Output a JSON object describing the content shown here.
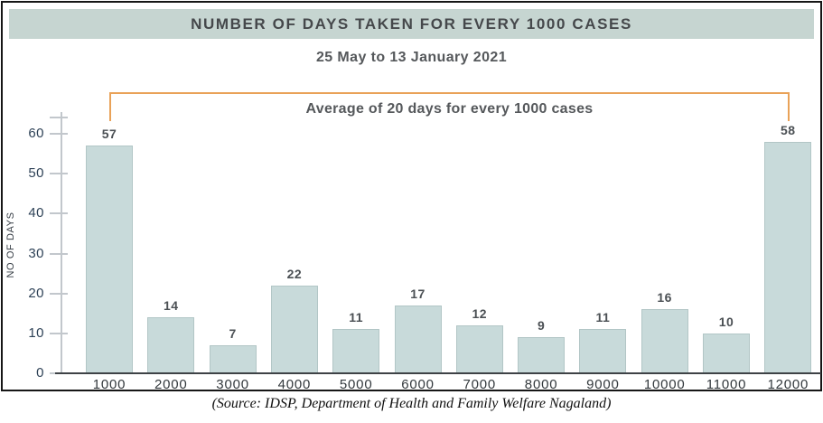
{
  "header": {
    "title": "NUMBER OF DAYS TAKEN FOR EVERY 1000 CASES"
  },
  "subtitle": "25 May to 13 January 2021",
  "annotation": {
    "label": "Average of 20 days for every 1000 cases"
  },
  "source": "(Source: IDSP, Department of Health and Family Welfare Nagaland)",
  "chart_data": {
    "type": "bar",
    "title": "NUMBER OF DAYS TAKEN FOR EVERY 1000 CASES",
    "subtitle": "25 May to 13 January 2021",
    "categories": [
      "1000",
      "2000",
      "3000",
      "4000",
      "5000",
      "6000",
      "7000",
      "8000",
      "9000",
      "10000",
      "11000",
      "12000"
    ],
    "values": [
      57,
      14,
      7,
      22,
      11,
      17,
      12,
      9,
      11,
      16,
      10,
      58
    ],
    "xlabel": "",
    "ylabel": "NO OF DAYS",
    "ylim": [
      0,
      65
    ],
    "yticks": [
      0,
      10,
      20,
      30,
      40,
      50,
      60
    ],
    "grid": false,
    "legend": "none",
    "annotation": "Average of 20 days for every 1000 cases",
    "annotation_span": [
      "1000",
      "12000"
    ],
    "bar_color": "#c8dada",
    "bar_border_color": "#b2c6c6",
    "accent_color": "#e9a258",
    "header_bg_color": "#c6d5d1"
  }
}
